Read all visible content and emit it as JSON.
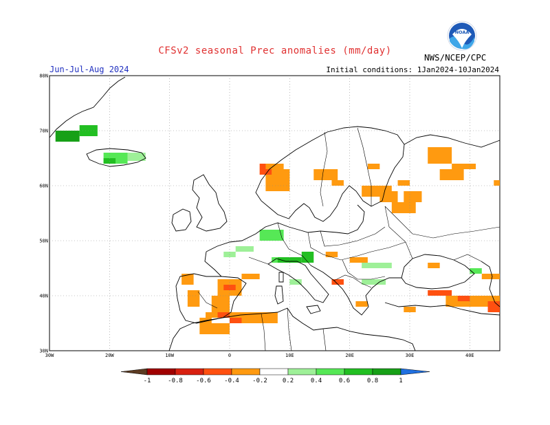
{
  "header": {
    "title": "CFSv2 seasonal Prec anomalies (mm/day)",
    "season": "Jun-Jul-Aug 2024",
    "initial_conditions": "Initial conditions: 1Jan2024-10Jan2024",
    "agency": "NWS/NCEP/CPC",
    "logo_text": "NOAA"
  },
  "map": {
    "region": "Europe",
    "lon_range": [
      -30,
      45
    ],
    "lat_range": [
      30,
      80
    ],
    "lat_labels": [
      "80N",
      "70N",
      "60N",
      "50N",
      "40N",
      "30N"
    ],
    "lon_labels": [
      "30W",
      "20W",
      "10W",
      "0",
      "10E",
      "20E",
      "30E",
      "40E"
    ],
    "grid": "dotted"
  },
  "legend": {
    "ticks": [
      "-1",
      "-0.8",
      "-0.6",
      "-0.4",
      "-0.2",
      "0.2",
      "0.4",
      "0.6",
      "0.8",
      "1"
    ],
    "colors": [
      "#5c3b22",
      "#a00000",
      "#d82010",
      "#ff5010",
      "#ff9a10",
      "#ffffff",
      "#9ef098",
      "#56e856",
      "#22bf22",
      "#17a017",
      "#2070e0"
    ]
  },
  "anomaly_colors": {
    "-0.4": "#ff9a10",
    "-0.6": "#ff5010",
    "-0.8": "#d82010",
    "0.2": "#9ef098",
    "0.4": "#56e856",
    "0.6": "#22bf22",
    "0.8": "#17a017"
  },
  "anomaly_cells": [
    {
      "lon": [
        -29,
        -25
      ],
      "lat": [
        68,
        70
      ],
      "value": 0.8
    },
    {
      "lon": [
        -25,
        -22
      ],
      "lat": [
        69,
        71
      ],
      "value": 0.6
    },
    {
      "lon": [
        -21,
        -17
      ],
      "lat": [
        64,
        66
      ],
      "value": 0.4
    },
    {
      "lon": [
        -17,
        -14
      ],
      "lat": [
        64.5,
        66
      ],
      "value": 0.2
    },
    {
      "lon": [
        -21,
        -19
      ],
      "lat": [
        64,
        65
      ],
      "value": 0.6
    },
    {
      "lon": [
        -8,
        -6
      ],
      "lat": [
        42,
        44
      ],
      "value": -0.4
    },
    {
      "lon": [
        -7,
        -5
      ],
      "lat": [
        38,
        41
      ],
      "value": -0.4
    },
    {
      "lon": [
        -2,
        2
      ],
      "lat": [
        40,
        43
      ],
      "value": -0.4
    },
    {
      "lon": [
        -1,
        1
      ],
      "lat": [
        41,
        42
      ],
      "value": -0.6
    },
    {
      "lon": [
        2,
        5
      ],
      "lat": [
        43,
        44
      ],
      "value": -0.4
    },
    {
      "lon": [
        -3,
        0
      ],
      "lat": [
        37,
        40
      ],
      "value": -0.4
    },
    {
      "lon": [
        -4,
        -1
      ],
      "lat": [
        36,
        37
      ],
      "value": -0.4
    },
    {
      "lon": [
        -5,
        -3
      ],
      "lat": [
        35,
        36
      ],
      "value": -0.4
    },
    {
      "lon": [
        0,
        8
      ],
      "lat": [
        35,
        37
      ],
      "value": -0.4
    },
    {
      "lon": [
        0,
        2
      ],
      "lat": [
        35,
        36
      ],
      "value": -0.6
    },
    {
      "lon": [
        -5,
        0
      ],
      "lat": [
        33,
        35
      ],
      "value": -0.4
    },
    {
      "lon": [
        -2,
        0
      ],
      "lat": [
        36,
        37
      ],
      "value": -0.6
    },
    {
      "lon": [
        6,
        10
      ],
      "lat": [
        59,
        63
      ],
      "value": -0.4
    },
    {
      "lon": [
        5,
        7
      ],
      "lat": [
        62,
        64
      ],
      "value": -0.6
    },
    {
      "lon": [
        6,
        9
      ],
      "lat": [
        63,
        64
      ],
      "value": -0.4
    },
    {
      "lon": [
        14,
        18
      ],
      "lat": [
        61,
        63
      ],
      "value": -0.4
    },
    {
      "lon": [
        17,
        19
      ],
      "lat": [
        60,
        61
      ],
      "value": -0.4
    },
    {
      "lon": [
        23,
        25
      ],
      "lat": [
        63,
        64
      ],
      "value": -0.4
    },
    {
      "lon": [
        22,
        27
      ],
      "lat": [
        58,
        60
      ],
      "value": -0.4
    },
    {
      "lon": [
        25,
        28
      ],
      "lat": [
        57,
        59
      ],
      "value": -0.4
    },
    {
      "lon": [
        27,
        31
      ],
      "lat": [
        55,
        57
      ],
      "value": -0.4
    },
    {
      "lon": [
        29,
        32
      ],
      "lat": [
        57,
        59
      ],
      "value": -0.4
    },
    {
      "lon": [
        33,
        37
      ],
      "lat": [
        64,
        67
      ],
      "value": -0.4
    },
    {
      "lon": [
        37,
        41
      ],
      "lat": [
        63,
        64
      ],
      "value": -0.4
    },
    {
      "lon": [
        35,
        39
      ],
      "lat": [
        61,
        63
      ],
      "value": -0.4
    },
    {
      "lon": [
        28,
        30
      ],
      "lat": [
        60,
        61
      ],
      "value": -0.4
    },
    {
      "lon": [
        44,
        45
      ],
      "lat": [
        60,
        61
      ],
      "value": -0.4
    },
    {
      "lon": [
        -1,
        1
      ],
      "lat": [
        47,
        48
      ],
      "value": 0.2
    },
    {
      "lon": [
        1,
        4
      ],
      "lat": [
        48,
        49
      ],
      "value": 0.2
    },
    {
      "lon": [
        5,
        9
      ],
      "lat": [
        50,
        52
      ],
      "value": 0.4
    },
    {
      "lon": [
        7,
        11
      ],
      "lat": [
        46,
        47
      ],
      "value": 0.4
    },
    {
      "lon": [
        8,
        12
      ],
      "lat": [
        46,
        47
      ],
      "value": 0.6
    },
    {
      "lon": [
        12,
        14
      ],
      "lat": [
        46,
        48
      ],
      "value": 0.6
    },
    {
      "lon": [
        16,
        18
      ],
      "lat": [
        47,
        48
      ],
      "value": -0.4
    },
    {
      "lon": [
        20,
        23
      ],
      "lat": [
        46,
        47
      ],
      "value": -0.4
    },
    {
      "lon": [
        22,
        27
      ],
      "lat": [
        45,
        46
      ],
      "value": 0.2
    },
    {
      "lon": [
        22,
        26
      ],
      "lat": [
        42,
        43
      ],
      "value": 0.2
    },
    {
      "lon": [
        10,
        12
      ],
      "lat": [
        42,
        43
      ],
      "value": 0.2
    },
    {
      "lon": [
        17,
        19
      ],
      "lat": [
        42,
        43
      ],
      "value": -0.6
    },
    {
      "lon": [
        21,
        23
      ],
      "lat": [
        38,
        39
      ],
      "value": -0.4
    },
    {
      "lon": [
        29,
        31
      ],
      "lat": [
        37,
        38
      ],
      "value": -0.4
    },
    {
      "lon": [
        33,
        37
      ],
      "lat": [
        40,
        41
      ],
      "value": -0.6
    },
    {
      "lon": [
        36,
        45
      ],
      "lat": [
        38,
        40
      ],
      "value": -0.4
    },
    {
      "lon": [
        38,
        40
      ],
      "lat": [
        39,
        40
      ],
      "value": -0.6
    },
    {
      "lon": [
        43,
        45
      ],
      "lat": [
        37,
        39
      ],
      "value": -0.6
    },
    {
      "lon": [
        42,
        45
      ],
      "lat": [
        43,
        44
      ],
      "value": -0.4
    },
    {
      "lon": [
        40,
        42
      ],
      "lat": [
        44,
        45
      ],
      "value": 0.4
    },
    {
      "lon": [
        33,
        35
      ],
      "lat": [
        45,
        46
      ],
      "value": -0.4
    }
  ]
}
